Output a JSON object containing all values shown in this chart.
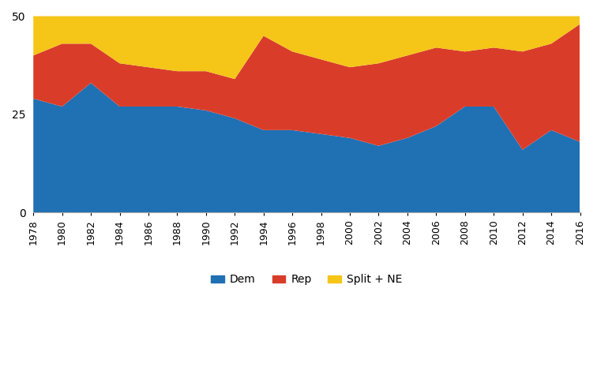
{
  "years": [
    1978,
    1980,
    1982,
    1984,
    1986,
    1988,
    1990,
    1992,
    1994,
    1996,
    1998,
    2000,
    2002,
    2004,
    2006,
    2008,
    2010,
    2012,
    2014,
    2016
  ],
  "dem": [
    29,
    27,
    33,
    27,
    27,
    27,
    26,
    24,
    21,
    21,
    20,
    19,
    17,
    19,
    22,
    27,
    27,
    16,
    21,
    18
  ],
  "rep": [
    11,
    16,
    10,
    11,
    10,
    9,
    10,
    10,
    24,
    20,
    19,
    18,
    21,
    21,
    20,
    14,
    15,
    25,
    22,
    30
  ],
  "split_ne": [
    10,
    7,
    7,
    12,
    13,
    14,
    14,
    16,
    5,
    9,
    11,
    13,
    12,
    10,
    8,
    9,
    8,
    9,
    7,
    2
  ],
  "colors": {
    "dem": "#2070B4",
    "rep": "#D93D2A",
    "split_ne": "#F5C518"
  },
  "ylim": [
    0,
    50
  ],
  "yticks": [
    0,
    25,
    50
  ],
  "legend_labels": [
    "Dem",
    "Rep",
    "Split + NE"
  ],
  "title": "",
  "xlabel": "",
  "ylabel": ""
}
